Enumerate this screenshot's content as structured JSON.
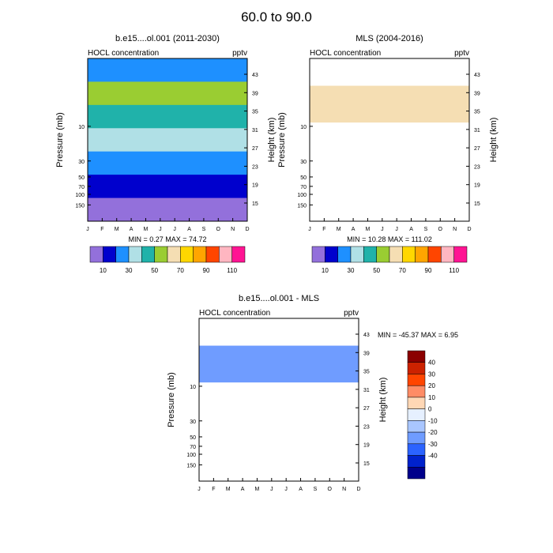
{
  "figure_title": "60.0 to  90.0",
  "chart_data": [
    {
      "type": "heatmap",
      "title": "b.e15....ol.001 (2011-2030)",
      "left_label": "HOCL concentration",
      "units": "pptv",
      "ylabel": "Pressure (mb)",
      "ylabel_right": "Height (km)",
      "months": [
        "J",
        "F",
        "M",
        "A",
        "M",
        "J",
        "J",
        "A",
        "S",
        "O",
        "N",
        "D"
      ],
      "pressure_ticks": [
        "10",
        "30",
        "50",
        "70",
        "100",
        "150"
      ],
      "height_ticks": [
        "43",
        "39",
        "35",
        "31",
        "27",
        "23",
        "19",
        "15"
      ],
      "stats": "MIN =   0.27  MAX =  74.72",
      "colorbar_labels": [
        "10",
        "30",
        "50",
        "70",
        "90",
        "110"
      ],
      "data_bands": [
        {
          "level_center": 0.5,
          "value": 20
        },
        {
          "level_center": 1.5,
          "value": 55
        },
        {
          "level_center": 2.5,
          "value": 45
        },
        {
          "level_center": 3.5,
          "value": 35
        },
        {
          "level_center": 4.5,
          "value": 25
        },
        {
          "level_center": 5.5,
          "value": 15
        },
        {
          "level_center": 6.5,
          "value": 5
        }
      ]
    },
    {
      "type": "heatmap",
      "title": "MLS (2004-2016)",
      "left_label": "HOCL concentration",
      "units": "pptv",
      "ylabel": "Pressure (mb)",
      "ylabel_right": "Height (km)",
      "months": [
        "J",
        "F",
        "M",
        "A",
        "M",
        "J",
        "J",
        "A",
        "S",
        "O",
        "N",
        "D"
      ],
      "pressure_ticks": [
        "10",
        "30",
        "50",
        "70",
        "100",
        "150"
      ],
      "height_ticks": [
        "43",
        "39",
        "35",
        "31",
        "27",
        "23",
        "19",
        "15"
      ],
      "stats": "MIN =  10.28  MAX = 111.02",
      "colorbar_labels": [
        "10",
        "30",
        "50",
        "70",
        "90",
        "110"
      ],
      "data_band": {
        "top_km": 40.5,
        "bottom_km": 32.5,
        "value": 65
      }
    },
    {
      "type": "heatmap",
      "title": "b.e15....ol.001 - MLS",
      "left_label": "HOCL concentration",
      "units": "pptv",
      "ylabel": "Pressure (mb)",
      "ylabel_right": "Height (km)",
      "months": [
        "J",
        "F",
        "M",
        "A",
        "M",
        "J",
        "J",
        "A",
        "S",
        "O",
        "N",
        "D"
      ],
      "pressure_ticks": [
        "10",
        "30",
        "50",
        "70",
        "100",
        "150"
      ],
      "height_ticks": [
        "43",
        "39",
        "35",
        "31",
        "27",
        "23",
        "19",
        "15"
      ],
      "stats": "MIN = -45.37  MAX =   6.95",
      "colorbar_labels": [
        "40",
        "30",
        "20",
        "10",
        "0",
        "-10",
        "-20",
        "-30",
        "-40"
      ],
      "data_band": {
        "top_km": 40.5,
        "bottom_km": 32.5,
        "value": -20
      }
    }
  ],
  "colorscale": {
    "seq": [
      "#9370db",
      "#0000cd",
      "#1e90ff",
      "#b0e0e6",
      "#20b2aa",
      "#9acd32",
      "#f5deb3",
      "#ffd700",
      "#ffa500",
      "#ff4500",
      "#ffb6c1",
      "#ff1493"
    ],
    "div": [
      "#8b0000",
      "#cc2200",
      "#ff4500",
      "#ff8c66",
      "#ffd7b5",
      "#e6f0ff",
      "#a9c6ff",
      "#6f9cff",
      "#2b63ff",
      "#0022cc",
      "#00008b"
    ]
  }
}
